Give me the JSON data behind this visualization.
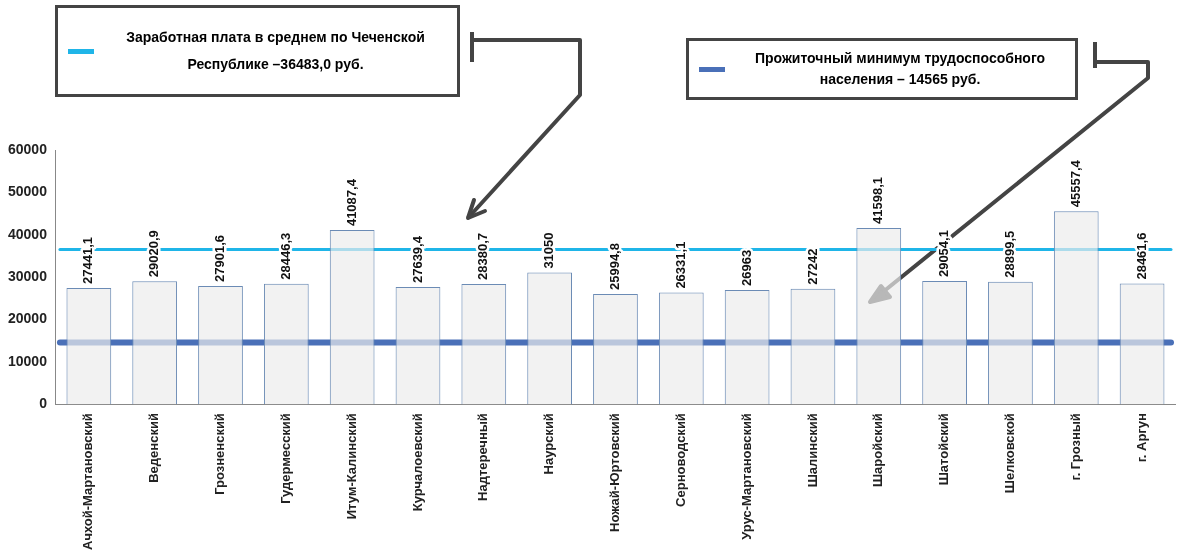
{
  "chart_data": {
    "type": "bar",
    "categories": [
      "Ачхой-Мартановский",
      "Веденский",
      "Грозненский",
      "Гудермесский",
      "Итум-Калинский",
      "Курчалоевский",
      "Надтеречный",
      "Наурский",
      "Ножай-Юртовский",
      "Серноводский",
      "Урус-Мартановский",
      "Шалинский",
      "Шаройский",
      "Шатойский",
      "Шелковской",
      "г. Грозный",
      "г. Аргун"
    ],
    "values": [
      27441.1,
      29020.9,
      27901.6,
      28446.3,
      41087.4,
      27639.4,
      28380.7,
      31050,
      25994.8,
      26331.1,
      26963,
      27242,
      41598.1,
      29054.1,
      28899.5,
      45557.4,
      28461.6
    ],
    "value_labels": [
      "27441,1",
      "29020,9",
      "27901,6",
      "28446,3",
      "41087,4",
      "27639,4",
      "28380,7",
      "31050",
      "25994,8",
      "26331,1",
      "26963",
      "27242",
      "41598,1",
      "29054,1",
      "28899,5",
      "45557,4",
      "28461,6"
    ],
    "color": "#ececec",
    "ylim": [
      0,
      60000
    ],
    "yticks": [
      0,
      10000,
      20000,
      30000,
      40000,
      50000,
      60000
    ],
    "grid": false,
    "legend": "top",
    "ref_lines": [
      {
        "axis": "y",
        "value": 36483,
        "label": "Заработная плата в среднем по Чеченской Республике –36483,0 руб.",
        "color": "#1fb5e8"
      },
      {
        "axis": "y",
        "value": 14565,
        "label": "Прожиточный минимум трудоспособного населения – 14565 руб.",
        "color": "#4a70b8"
      }
    ]
  }
}
